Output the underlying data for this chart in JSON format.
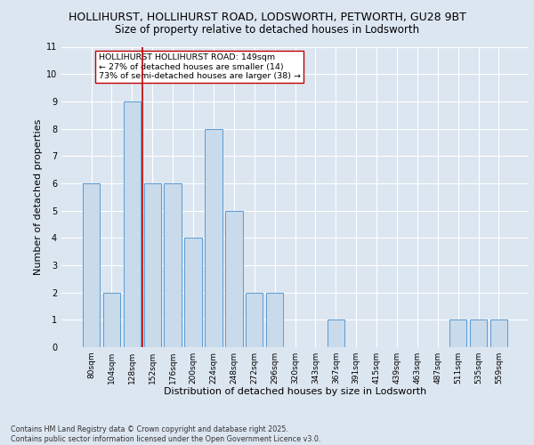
{
  "title_line1": "HOLLIHURST, HOLLIHURST ROAD, LODSWORTH, PETWORTH, GU28 9BT",
  "title_line2": "Size of property relative to detached houses in Lodsworth",
  "xlabel": "Distribution of detached houses by size in Lodsworth",
  "ylabel": "Number of detached properties",
  "categories": [
    "80sqm",
    "104sqm",
    "128sqm",
    "152sqm",
    "176sqm",
    "200sqm",
    "224sqm",
    "248sqm",
    "272sqm",
    "296sqm",
    "320sqm",
    "343sqm",
    "367sqm",
    "391sqm",
    "415sqm",
    "439sqm",
    "463sqm",
    "487sqm",
    "511sqm",
    "535sqm",
    "559sqm"
  ],
  "values": [
    6,
    2,
    9,
    6,
    6,
    4,
    8,
    5,
    2,
    2,
    0,
    0,
    1,
    0,
    0,
    0,
    0,
    0,
    1,
    1,
    1
  ],
  "bar_color": "#c9daea",
  "bar_edgecolor": "#5b9bd5",
  "highlight_index": 2,
  "highlight_color_edge": "#c00000",
  "annotation_box_text": "HOLLIHURST HOLLIHURST ROAD: 149sqm\n← 27% of detached houses are smaller (14)\n73% of semi-detached houses are larger (38) →",
  "annotation_box_edgecolor": "#c00000",
  "annotation_box_facecolor": "white",
  "ylim": [
    0,
    11
  ],
  "yticks": [
    0,
    1,
    2,
    3,
    4,
    5,
    6,
    7,
    8,
    9,
    10,
    11
  ],
  "background_color": "#dce6f1",
  "plot_bg_color": "#dce6f1",
  "grid_color": "white",
  "footer_text": "Contains HM Land Registry data © Crown copyright and database right 2025.\nContains public sector information licensed under the Open Government Licence v3.0.",
  "title_fontsize": 9,
  "subtitle_fontsize": 8.5,
  "axis_label_fontsize": 8,
  "tick_fontsize": 6.5,
  "annotation_fontsize": 6.8,
  "footer_fontsize": 5.8
}
